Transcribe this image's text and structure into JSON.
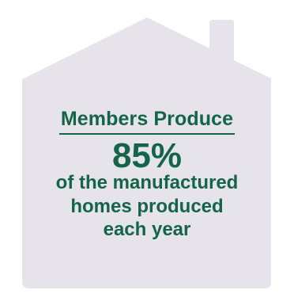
{
  "colors": {
    "house_fill": "#e6e4ea",
    "text": "#146548"
  },
  "icon": "house-icon",
  "callout": {
    "heading": "Members Produce",
    "stat": "85%",
    "description_lines": [
      "of the manufactured",
      "homes produced",
      "each year"
    ]
  }
}
